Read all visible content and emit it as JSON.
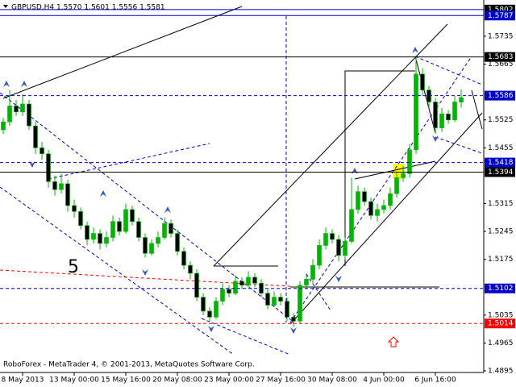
{
  "chart_data": {
    "type": "candlestick",
    "title": "GBPUSD,H4  1.5570 1.5601 1.5556 1.5581",
    "annotation": "5",
    "footer": "RoboForex - MetaTrader 4, © 2001-2013, MetaQuotes Software Corp.",
    "bull_color": "#00b400",
    "bear_color": "#000000",
    "open": [
      1.55,
      1.552,
      1.556,
      1.5545,
      1.5565,
      1.551,
      1.5455,
      1.544,
      1.537,
      1.535,
      1.5365,
      1.531,
      1.5295,
      1.526,
      1.5225,
      1.524,
      1.5215,
      1.523,
      1.527,
      1.5245,
      1.53,
      1.527,
      1.523,
      1.519,
      1.5215,
      1.523,
      1.5265,
      1.524,
      1.5195,
      1.516,
      1.514,
      1.508,
      1.5045,
      1.503,
      1.507,
      1.51,
      1.509,
      1.512,
      1.511,
      1.513,
      1.5115,
      1.509,
      1.506,
      1.508,
      1.507,
      1.503,
      1.502,
      1.511,
      1.5125,
      1.516,
      1.521,
      1.524,
      1.5225,
      1.5185,
      1.522,
      1.53,
      1.5345,
      1.532,
      1.5285,
      1.53,
      1.531,
      1.534,
      1.538,
      1.539,
      1.545,
      1.564,
      1.56,
      1.557,
      1.5505,
      1.554,
      1.5525,
      1.557
    ],
    "high": [
      1.553,
      1.56,
      1.5575,
      1.559,
      1.5575,
      1.552,
      1.547,
      1.545,
      1.5385,
      1.539,
      1.5375,
      1.5325,
      1.5305,
      1.527,
      1.5255,
      1.525,
      1.5245,
      1.5285,
      1.528,
      1.5315,
      1.531,
      1.528,
      1.524,
      1.5225,
      1.5245,
      1.528,
      1.5275,
      1.525,
      1.5205,
      1.517,
      1.515,
      1.509,
      1.5055,
      1.508,
      1.5115,
      1.511,
      1.5135,
      1.513,
      1.5145,
      1.514,
      1.5125,
      1.51,
      1.5095,
      1.509,
      1.508,
      1.504,
      1.512,
      1.514,
      1.5175,
      1.5225,
      1.5255,
      1.525,
      1.5235,
      1.523,
      1.538,
      1.536,
      1.5355,
      1.533,
      1.5315,
      1.5325,
      1.5355,
      1.5395,
      1.541,
      1.5465,
      1.5683,
      1.5655,
      1.561,
      1.558,
      1.5555,
      1.555,
      1.5585,
      1.5601
    ],
    "low": [
      1.549,
      1.551,
      1.5535,
      1.5535,
      1.55,
      1.544,
      1.5425,
      1.5355,
      1.5335,
      1.534,
      1.5295,
      1.528,
      1.525,
      1.521,
      1.5215,
      1.52,
      1.5205,
      1.522,
      1.5235,
      1.524,
      1.526,
      1.522,
      1.518,
      1.5185,
      1.5205,
      1.5225,
      1.523,
      1.5185,
      1.515,
      1.5125,
      1.507,
      1.5035,
      1.502,
      1.5025,
      1.506,
      1.508,
      1.5085,
      1.51,
      1.5105,
      1.5105,
      1.508,
      1.505,
      1.5055,
      1.506,
      1.502,
      1.5005,
      1.5015,
      1.51,
      1.5115,
      1.515,
      1.52,
      1.5215,
      1.517,
      1.5175,
      1.5215,
      1.529,
      1.531,
      1.5275,
      1.527,
      1.529,
      1.53,
      1.533,
      1.537,
      1.538,
      1.544,
      1.5585,
      1.5555,
      1.549,
      1.5495,
      1.5515,
      1.552,
      1.5556
    ],
    "close": [
      1.552,
      1.556,
      1.5545,
      1.5565,
      1.551,
      1.5455,
      1.544,
      1.537,
      1.535,
      1.5365,
      1.531,
      1.5295,
      1.526,
      1.5225,
      1.524,
      1.5215,
      1.523,
      1.527,
      1.5245,
      1.53,
      1.527,
      1.523,
      1.519,
      1.5215,
      1.523,
      1.5265,
      1.524,
      1.5195,
      1.516,
      1.514,
      1.508,
      1.5045,
      1.503,
      1.507,
      1.51,
      1.509,
      1.512,
      1.511,
      1.513,
      1.5115,
      1.509,
      1.506,
      1.508,
      1.507,
      1.503,
      1.502,
      1.511,
      1.5125,
      1.516,
      1.521,
      1.524,
      1.5225,
      1.5185,
      1.522,
      1.53,
      1.5345,
      1.532,
      1.5285,
      1.53,
      1.531,
      1.534,
      1.538,
      1.539,
      1.545,
      1.564,
      1.56,
      1.557,
      1.5505,
      1.554,
      1.5525,
      1.557,
      1.5581
    ],
    "xticks": [
      {
        "value": 3,
        "label": "8 May 2013"
      },
      {
        "value": 11,
        "label": "13 May 00:00"
      },
      {
        "value": 19,
        "label": "15 May 16:00"
      },
      {
        "value": 27,
        "label": "20 May 08:00"
      },
      {
        "value": 35,
        "label": "23 May 00:00"
      },
      {
        "value": 43,
        "label": "27 May 16:00"
      },
      {
        "value": 51,
        "label": "30 May 08:00"
      },
      {
        "value": 59,
        "label": "4 Jun 00:00"
      },
      {
        "value": 67,
        "label": "6 Jun 16:00"
      }
    ],
    "ylim": [
      1.4891,
      1.5826
    ],
    "yticks": [
      1.5735,
      1.5665,
      1.5525,
      1.5455,
      1.5315,
      1.5245,
      1.5175,
      1.5035,
      1.4965,
      1.4895
    ],
    "levels": [
      {
        "value": 1.5802,
        "color": "#0000cc",
        "label_bg": "#000000",
        "style": "solid"
      },
      {
        "value": 1.5787,
        "color": "#0000cc",
        "label_bg": "#0000cc",
        "style": "solid"
      },
      {
        "value": 1.5683,
        "color": "#000000",
        "label_bg": "#000000",
        "style": "solid"
      },
      {
        "value": 1.5586,
        "color": "#0000cc",
        "label_bg": "#0000cc",
        "style": "dashed"
      },
      {
        "value": 1.5418,
        "color": "#0000cc",
        "label_bg": "#0000cc",
        "style": "dashed"
      },
      {
        "value": 1.5394,
        "color": "#000000",
        "label_bg": "#000000",
        "style": "solid"
      },
      {
        "value": 1.5102,
        "color": "#0000cc",
        "label_bg": "#0000cc",
        "style": "dashed"
      },
      {
        "value": 1.5014,
        "color": "#ff0000",
        "label_bg": "#ff0000",
        "style": "dashed"
      }
    ]
  }
}
